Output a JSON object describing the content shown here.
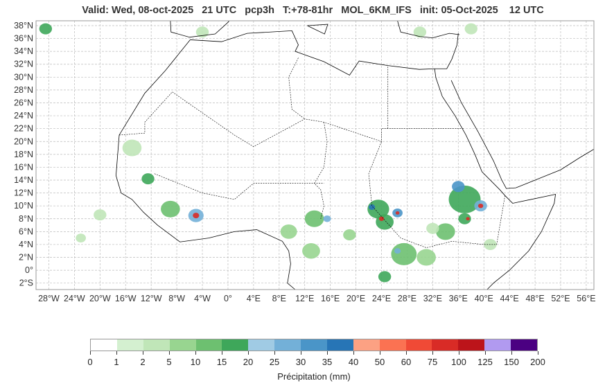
{
  "title": "Valid: Wed, 08-oct-2025   21 UTC   pcp3h   T:+78-81hr   MOL_6KM_IFS   init: 05-Oct-2025    12 UTC",
  "map": {
    "lon_range": [
      -30,
      57.2
    ],
    "lat_range": [
      -3,
      38.75
    ],
    "lat_ticks": [
      38,
      36,
      34,
      32,
      30,
      28,
      26,
      24,
      22,
      20,
      18,
      16,
      14,
      12,
      10,
      8,
      6,
      4,
      2,
      0,
      -2
    ],
    "lat_labels": [
      "38°N",
      "36°N",
      "34°N",
      "32°N",
      "30°N",
      "28°N",
      "26°N",
      "24°N",
      "22°N",
      "20°N",
      "18°N",
      "16°N",
      "14°N",
      "12°N",
      "10°N",
      "8°N",
      "6°N",
      "4°N",
      "2°N",
      "0°",
      "2°S"
    ],
    "lon_ticks": [
      -28,
      -24,
      -20,
      -16,
      -12,
      -8,
      -4,
      0,
      4,
      8,
      12,
      16,
      20,
      24,
      28,
      32,
      36,
      40,
      44,
      48,
      52,
      56
    ],
    "lon_labels": [
      "28°W",
      "24°W",
      "20°W",
      "16°W",
      "12°W",
      "8°W",
      "4°W",
      "0°",
      "4°E",
      "8°E",
      "12°E",
      "16°E",
      "20°E",
      "24°E",
      "28°E",
      "32°E",
      "36°E",
      "40°E",
      "44°E",
      "48°E",
      "52°E",
      "56°E"
    ],
    "precip_cells": [
      [
        -15,
        19,
        1.5,
        3
      ],
      [
        -12.5,
        14.2,
        1,
        15
      ],
      [
        -9,
        9.5,
        1.5,
        10
      ],
      [
        -5,
        8.5,
        1.2,
        25
      ],
      [
        -5,
        8.5,
        0.5,
        75
      ],
      [
        -20,
        8.6,
        1,
        2
      ],
      [
        -23,
        5,
        0.8,
        2
      ],
      [
        9.5,
        6,
        1.3,
        5
      ],
      [
        13.5,
        8,
        1.5,
        10
      ],
      [
        15.5,
        8,
        0.6,
        25
      ],
      [
        13,
        3,
        1.4,
        5
      ],
      [
        19,
        5.5,
        1,
        5
      ],
      [
        23.5,
        9.5,
        1.7,
        15
      ],
      [
        22.5,
        9.8,
        0.5,
        35
      ],
      [
        24.5,
        7.5,
        1.4,
        15
      ],
      [
        24,
        8,
        0.4,
        75
      ],
      [
        26.5,
        8.9,
        0.8,
        30
      ],
      [
        26.5,
        8.9,
        0.3,
        75
      ],
      [
        27.5,
        2.5,
        2,
        10
      ],
      [
        26.5,
        3,
        0.5,
        25
      ],
      [
        24.5,
        -1,
        1,
        15
      ],
      [
        31,
        2,
        1.5,
        5
      ],
      [
        34,
        6,
        1.5,
        10
      ],
      [
        37,
        11,
        2.5,
        15
      ],
      [
        39.5,
        10,
        1,
        25
      ],
      [
        39.5,
        10,
        0.4,
        75
      ],
      [
        37,
        8,
        1,
        15
      ],
      [
        36,
        13,
        1,
        30
      ],
      [
        37.5,
        8,
        0.3,
        75
      ],
      [
        -28.5,
        37.5,
        1,
        15
      ],
      [
        -4,
        37,
        1,
        2
      ],
      [
        30,
        37,
        1,
        2
      ],
      [
        38,
        37.5,
        1,
        2
      ],
      [
        32,
        6.5,
        1,
        2
      ],
      [
        41,
        4,
        1,
        2
      ]
    ]
  },
  "colorbar": {
    "label": "Précipitation (mm)",
    "ticks": [
      "0",
      "1",
      "2",
      "5",
      "10",
      "15",
      "20",
      "25",
      "30",
      "35",
      "40",
      "50",
      "60",
      "75",
      "100",
      "125",
      "150",
      "200"
    ],
    "bounds": [
      0,
      1,
      2,
      5,
      10,
      15,
      20,
      25,
      30,
      35,
      40,
      50,
      60,
      75,
      100,
      125,
      150,
      200
    ],
    "colors": [
      "#ffffff",
      "#d4f0d0",
      "#c0e6b8",
      "#98d590",
      "#6dc070",
      "#3ea75a",
      "#a0cbe4",
      "#73b0d8",
      "#4a95c8",
      "#2775b6",
      "#fca183",
      "#fb7252",
      "#f04a36",
      "#d92b26",
      "#bc141a",
      "#b19af0",
      "#4b0082"
    ]
  }
}
